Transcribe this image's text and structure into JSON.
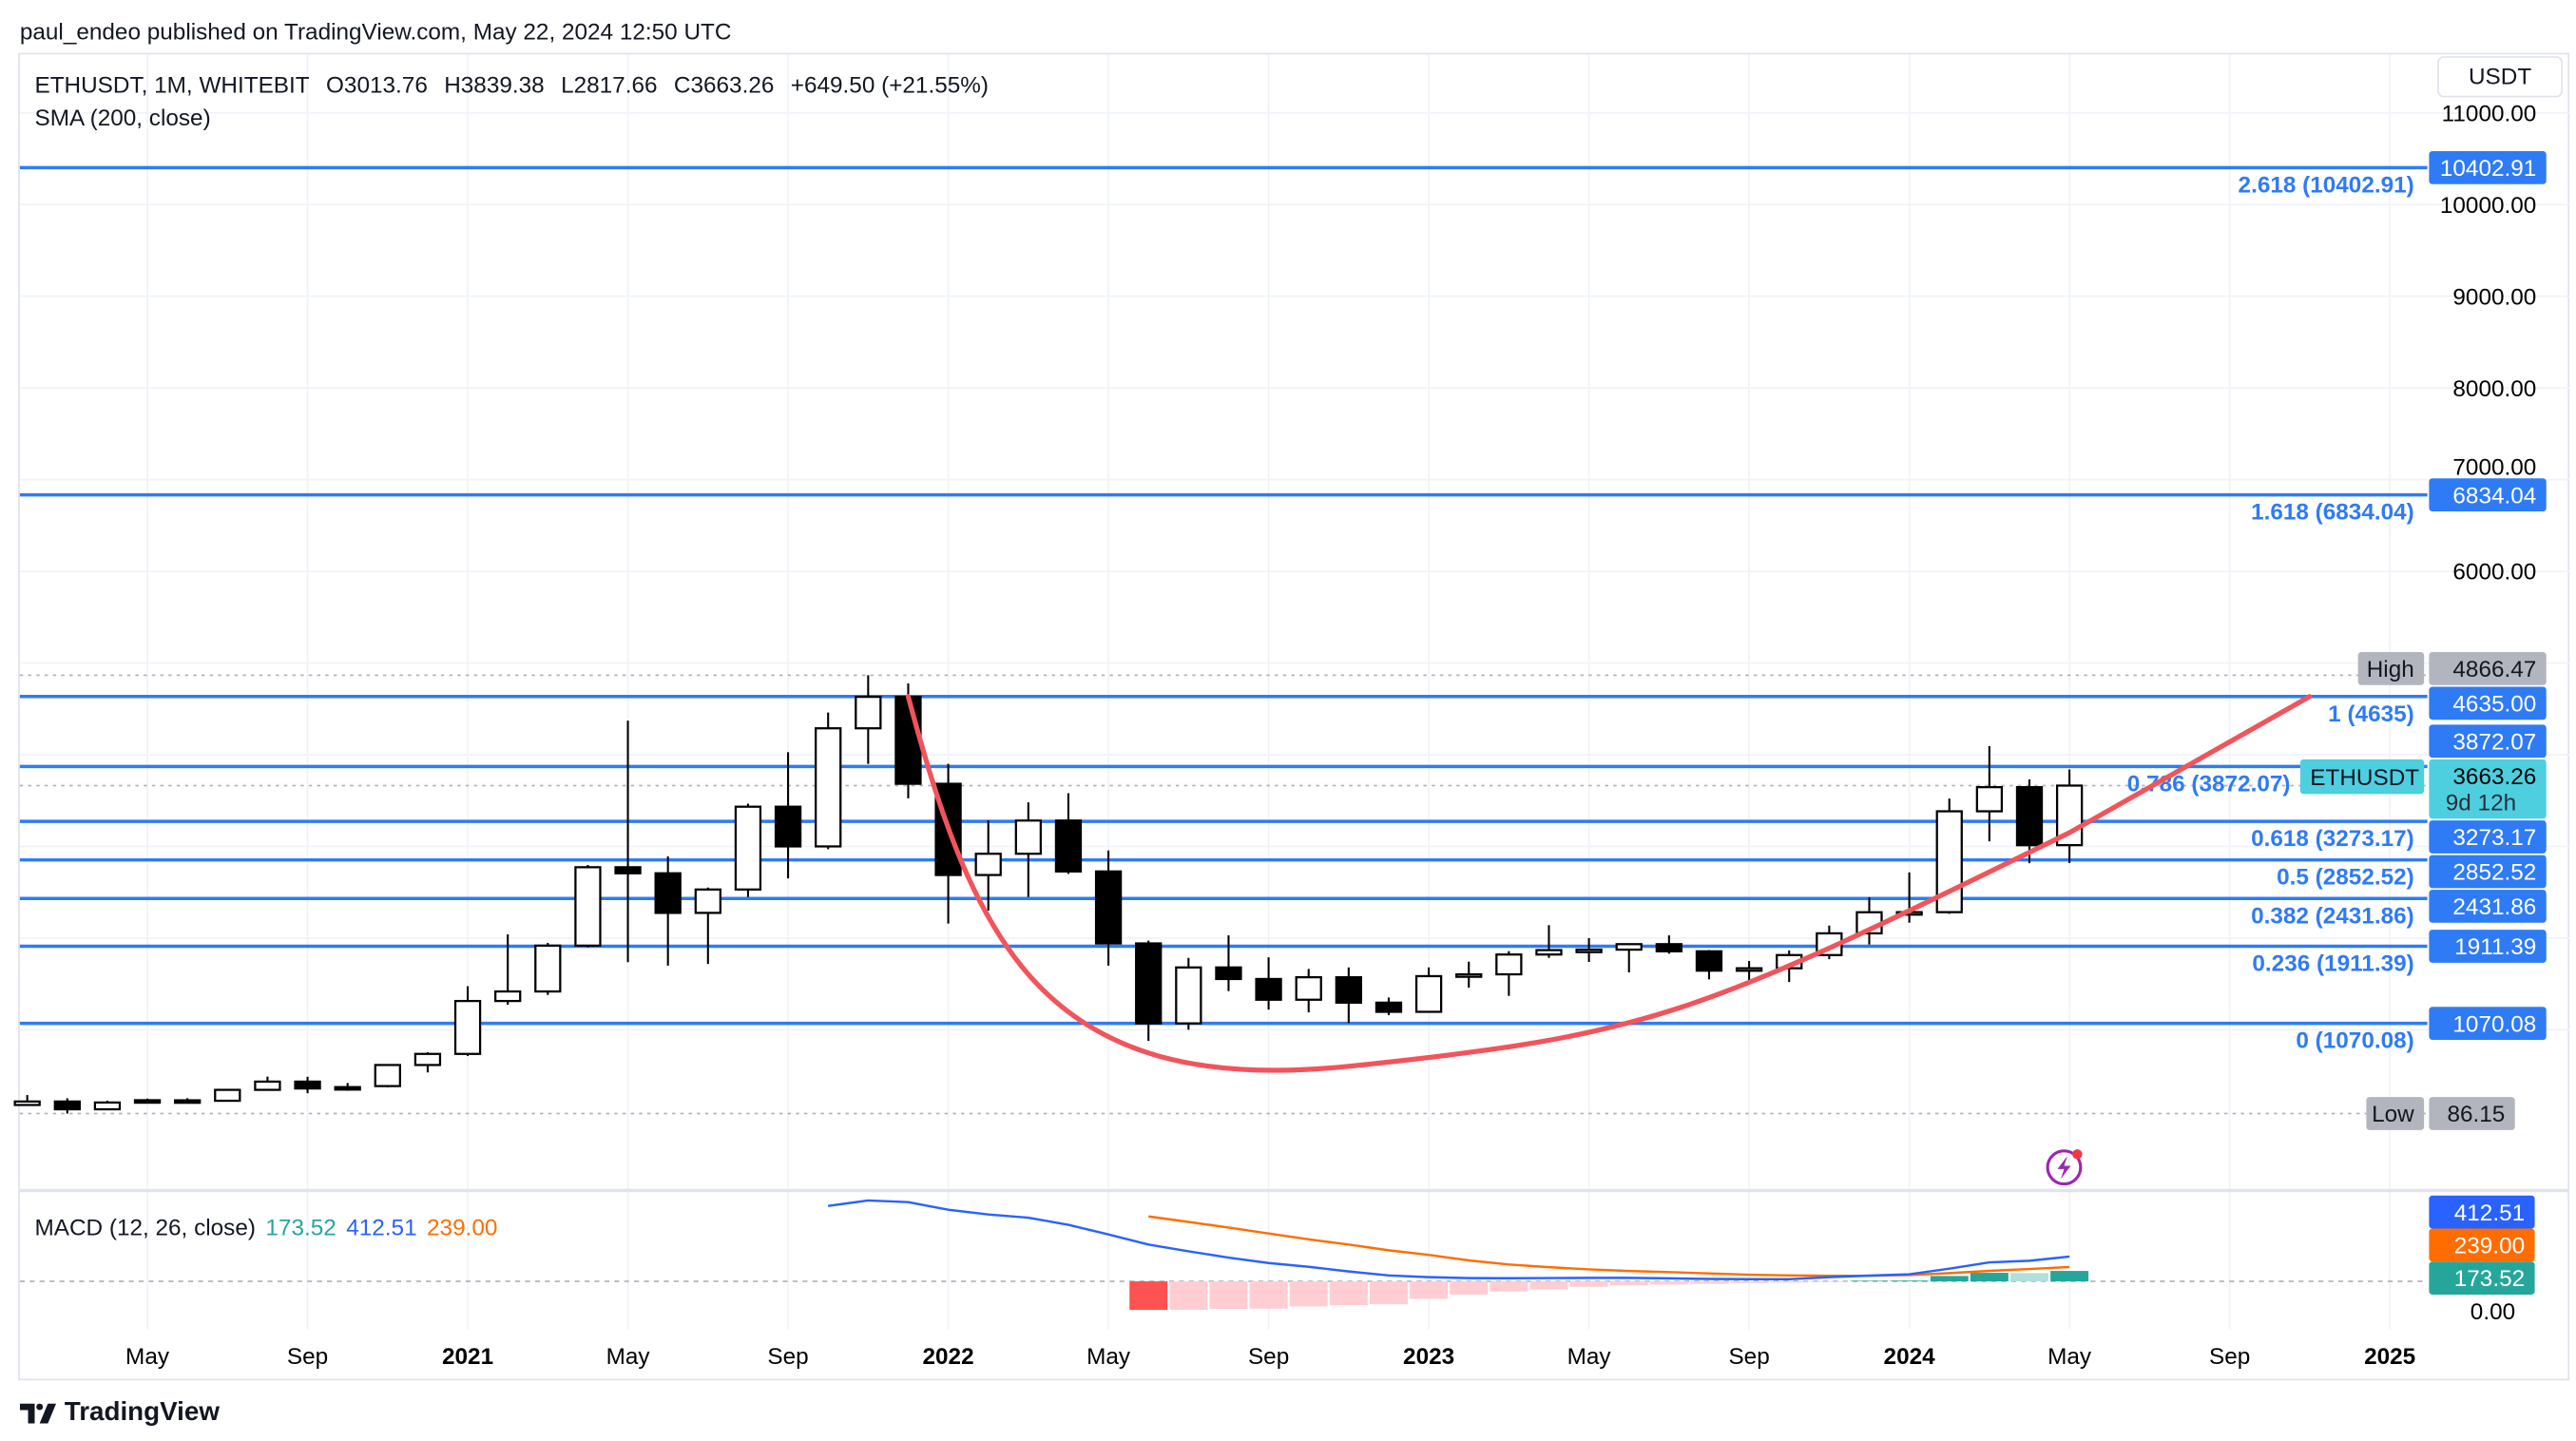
{
  "publisher_line": "paul_endeo published on TradingView.com, May 22, 2024 12:50 UTC",
  "legend": {
    "symbol": "ETHUSDT, 1M, WHITEBIT",
    "open": "O3013.76",
    "high": "H3839.38",
    "low": "L2817.66",
    "close": "C3663.26",
    "change": "+649.50 (+21.55%)",
    "sma": "SMA (200, close)"
  },
  "currency_button": "USDT",
  "branding": "TradingView",
  "colors": {
    "fib": "#2f7bf5",
    "curve": "#f2545b",
    "current_price": "#4ecfe0",
    "macd": "#2962ff",
    "signal": "#ff6d00",
    "hist_pos": "#26a69a",
    "hist_pos_light": "#b2dfdb",
    "hist_neg": "#ff5252",
    "hist_neg_light": "#ffcdd2",
    "extreme_label": "#b2b5be"
  },
  "icons": {
    "alert": "lightning-icon",
    "logo": "tradingview-logo-icon"
  },
  "price_labels": {
    "high_tag": "High",
    "high_value": "4866.47",
    "low_tag": "Low",
    "low_value": "86.15",
    "symbol_tag": "ETHUSDT",
    "last_value": "3663.26",
    "countdown": "9d 12h"
  },
  "fib_levels": [
    {
      "level": 2.618,
      "price": 10402.91,
      "label": "2.618 (10402.91)",
      "axis": "10402.91"
    },
    {
      "level": 1.618,
      "price": 6834.04,
      "label": "1.618 (6834.04)",
      "axis": "6834.04"
    },
    {
      "level": 1,
      "price": 4635,
      "label": "1 (4635)",
      "axis": "4635.00"
    },
    {
      "level": 0.786,
      "price": 3872.07,
      "label": "0.786 (3872.07)",
      "axis": "3872.07"
    },
    {
      "level": 0.618,
      "price": 3273.17,
      "label": "0.618 (3273.17)",
      "axis": "3273.17"
    },
    {
      "level": 0.5,
      "price": 2852.52,
      "label": "0.5 (2852.52)",
      "axis": "2852.52"
    },
    {
      "level": 0.382,
      "price": 2431.86,
      "label": "0.382 (2431.86)",
      "axis": "2431.86"
    },
    {
      "level": 0.236,
      "price": 1911.39,
      "label": "0.236 (1911.39)",
      "axis": "1911.39"
    },
    {
      "level": 0,
      "price": 1070.08,
      "label": "0 (1070.08)",
      "axis": "1070.08"
    }
  ],
  "chart_data": {
    "type": "candlestick",
    "symbol": "ETHUSDT",
    "interval": "1M",
    "y_scale": "linear",
    "ylim": [
      0,
      11500
    ],
    "y_ticks": [
      "11000.00",
      "10000.00",
      "9000.00",
      "8000.00",
      "7000.00",
      "6000.00"
    ],
    "x_ticks": [
      {
        "month": "2020-05",
        "label": "May"
      },
      {
        "month": "2020-09",
        "label": "Sep"
      },
      {
        "month": "2021-01",
        "label": "2021"
      },
      {
        "month": "2021-05",
        "label": "May"
      },
      {
        "month": "2021-09",
        "label": "Sep"
      },
      {
        "month": "2022-01",
        "label": "2022"
      },
      {
        "month": "2022-05",
        "label": "May"
      },
      {
        "month": "2022-09",
        "label": "Sep"
      },
      {
        "month": "2023-01",
        "label": "2023"
      },
      {
        "month": "2023-05",
        "label": "May"
      },
      {
        "month": "2023-09",
        "label": "Sep"
      },
      {
        "month": "2024-01",
        "label": "2024"
      },
      {
        "month": "2024-05",
        "label": "May"
      },
      {
        "month": "2024-09",
        "label": "Sep"
      },
      {
        "month": "2025-01",
        "label": "2025"
      }
    ],
    "grid": true,
    "candles": [
      [
        "2020-02",
        180,
        288,
        180,
        218
      ],
      [
        "2020-03",
        218,
        253,
        86.15,
        133
      ],
      [
        "2020-04",
        133,
        227,
        130,
        207
      ],
      [
        "2020-05",
        232,
        250,
        205,
        213
      ],
      [
        "2020-06",
        231,
        254,
        216,
        226
      ],
      [
        "2020-07",
        226,
        348,
        222,
        345
      ],
      [
        "2020-08",
        345,
        490,
        336,
        435
      ],
      [
        "2020-09",
        435,
        488,
        308,
        360
      ],
      [
        "2020-10",
        375,
        420,
        335,
        360
      ],
      [
        "2020-11",
        386,
        623,
        373,
        616
      ],
      [
        "2020-12",
        616,
        755,
        535,
        737
      ],
      [
        "2021-01",
        737,
        1476,
        714,
        1314
      ],
      [
        "2021-02",
        1314,
        2041,
        1274,
        1418
      ],
      [
        "2021-03",
        1418,
        1947,
        1380,
        1918
      ],
      [
        "2021-04",
        1918,
        2797,
        1900,
        2773
      ],
      [
        "2021-05",
        2773,
        4372,
        1737,
        2707
      ],
      [
        "2021-06",
        2707,
        2891,
        1700,
        2275
      ],
      [
        "2021-07",
        2275,
        2551,
        1718,
        2530
      ],
      [
        "2021-08",
        2530,
        3466,
        2450,
        3433
      ],
      [
        "2021-09",
        3433,
        4027,
        2651,
        3000
      ],
      [
        "2021-10",
        3000,
        4460,
        2970,
        4288
      ],
      [
        "2021-11",
        4288,
        4866.47,
        3900,
        4631
      ],
      [
        "2021-12",
        4631,
        4778,
        3525,
        3683
      ],
      [
        "2022-01",
        3683,
        3900,
        2159,
        2688
      ],
      [
        "2022-02",
        2688,
        3285,
        2300,
        2920
      ],
      [
        "2022-03",
        2920,
        3480,
        2450,
        3282
      ],
      [
        "2022-04",
        3282,
        3580,
        2700,
        2727
      ],
      [
        "2022-05",
        2727,
        2955,
        1700,
        1942
      ],
      [
        "2022-06",
        1942,
        1972,
        880,
        1070
      ],
      [
        "2022-07",
        1070,
        1784,
        1000,
        1680
      ],
      [
        "2022-08",
        1680,
        2030,
        1422,
        1554
      ],
      [
        "2022-09",
        1554,
        1790,
        1220,
        1328
      ],
      [
        "2022-10",
        1328,
        1664,
        1190,
        1573
      ],
      [
        "2022-11",
        1573,
        1680,
        1073,
        1296
      ],
      [
        "2022-12",
        1296,
        1352,
        1160,
        1196
      ],
      [
        "2023-01",
        1196,
        1680,
        1190,
        1585
      ],
      [
        "2023-02",
        1585,
        1743,
        1460,
        1605
      ],
      [
        "2023-03",
        1605,
        1857,
        1370,
        1821
      ],
      [
        "2023-04",
        1821,
        2141,
        1785,
        1869
      ],
      [
        "2023-05",
        1869,
        2000,
        1740,
        1874
      ],
      [
        "2023-06",
        1874,
        1935,
        1626,
        1934
      ],
      [
        "2023-07",
        1934,
        2030,
        1830,
        1856
      ],
      [
        "2023-08",
        1856,
        1870,
        1550,
        1645
      ],
      [
        "2023-09",
        1645,
        1750,
        1531,
        1671
      ],
      [
        "2023-10",
        1671,
        1866,
        1521,
        1815
      ],
      [
        "2023-11",
        1815,
        2137,
        1770,
        2052
      ],
      [
        "2023-12",
        2052,
        2445,
        1930,
        2282
      ],
      [
        "2024-01",
        2282,
        2717,
        2168,
        2283
      ],
      [
        "2024-02",
        2283,
        3522,
        2265,
        3383
      ],
      [
        "2024-03",
        3383,
        4093,
        3055,
        3646
      ],
      [
        "2024-04",
        3646,
        3730,
        2817,
        3013
      ],
      [
        "2024-05",
        3013.76,
        3839.38,
        2817.66,
        3663.26
      ]
    ],
    "candle_fields": [
      "month",
      "open",
      "high",
      "low",
      "close"
    ],
    "reference_lines": {
      "high": 4866.47,
      "low": 86.15,
      "last": 3663.26
    },
    "cup_curve": [
      [
        "2021-12",
        4635
      ],
      [
        "2022-10",
        1070
      ],
      [
        "2023-06",
        1500
      ],
      [
        "2024-05",
        3150
      ],
      [
        "2024-11",
        4635
      ]
    ],
    "macd": {
      "title": "MACD (12, 26, close)",
      "values_shown": {
        "histogram": "173.52",
        "macd": "412.51",
        "signal": "239.00"
      },
      "axis_zero": "0.00",
      "macd_start": "2021-10",
      "macd_line": [
        1255,
        1346,
        1318,
        1192,
        1113,
        1060,
        940,
        780,
        612,
        500,
        395,
        305,
        242,
        165,
        99,
        70,
        54,
        52,
        55,
        58,
        58,
        50,
        40,
        36,
        36,
        70,
        96,
        118,
        211,
        316,
        343,
        412.51
      ],
      "signal_start": "2022-06",
      "signal_line": [
        1080,
        989,
        895,
        797,
        700,
        612,
        517,
        440,
        349,
        280,
        236,
        200,
        173,
        154,
        132,
        110,
        99,
        93,
        93,
        105,
        137,
        175,
        205,
        239.0
      ],
      "histogram_start": "2022-06",
      "histogram": [
        -475,
        -473,
        -459,
        -455,
        -417,
        -396,
        -380,
        -291,
        -222,
        -170,
        -132,
        -90,
        -64,
        -53,
        -40,
        -27,
        -20,
        -11,
        10,
        12,
        89,
        142,
        137,
        173.52
      ]
    }
  }
}
